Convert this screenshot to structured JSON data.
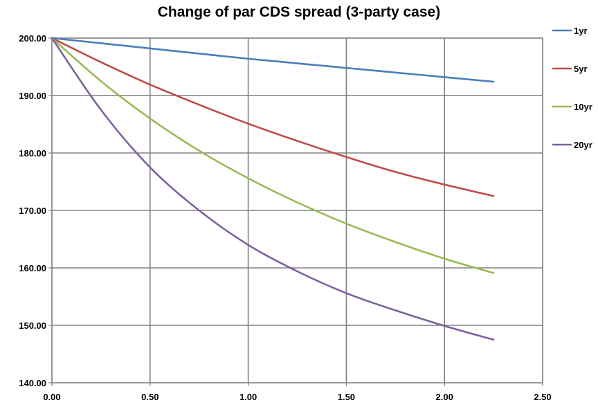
{
  "chart_data": {
    "type": "line",
    "title": "Change of par CDS spread (3-party case)",
    "xlabel": "",
    "ylabel": "",
    "xlim": [
      0,
      2.5
    ],
    "ylim": [
      140,
      200
    ],
    "x_ticks": [
      "0.00",
      "0.50",
      "1.00",
      "1.50",
      "2.00",
      "2.50"
    ],
    "y_ticks": [
      "140.00",
      "150.00",
      "160.00",
      "170.00",
      "180.00",
      "190.00",
      "200.00"
    ],
    "grid": true,
    "legend_position": "right",
    "x": [
      0,
      0.25,
      0.5,
      0.75,
      1.0,
      1.25,
      1.5,
      1.75,
      2.0,
      2.25
    ],
    "series": [
      {
        "name": "1yr",
        "color": "#4a7ebb",
        "values": [
          200.0,
          199.1,
          198.2,
          197.3,
          196.4,
          195.6,
          194.8,
          194.0,
          193.2,
          192.4
        ]
      },
      {
        "name": "5yr",
        "color": "#be4b48",
        "values": [
          200.0,
          195.8,
          191.9,
          188.4,
          185.1,
          182.1,
          179.3,
          176.7,
          174.5,
          172.5
        ]
      },
      {
        "name": "10yr",
        "color": "#98b954",
        "values": [
          200.0,
          192.5,
          186.0,
          180.4,
          175.6,
          171.4,
          167.7,
          164.5,
          161.6,
          159.1
        ]
      },
      {
        "name": "20yr",
        "color": "#7d60a0",
        "values": [
          200.0,
          187.5,
          177.5,
          170.0,
          164.0,
          159.4,
          155.6,
          152.6,
          149.9,
          147.5
        ]
      }
    ]
  }
}
